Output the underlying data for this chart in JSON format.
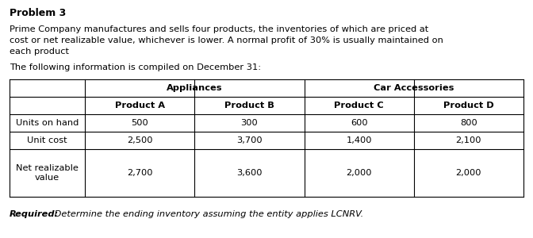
{
  "title": "Problem 3",
  "paragraph1": "Prime Company manufactures and sells four products, the inventories of which are priced at",
  "paragraph2": "cost or net realizable value, whichever is lower. A normal profit of 30% is usually maintained on",
  "paragraph3": "each product",
  "sub_heading": "The following information is compiled on December 31:",
  "required_label": "Required:",
  "required_rest": " Determine the ending inventory assuming the entity applies LCNRV.",
  "group_headers": [
    "Appliances",
    "Car Accessories"
  ],
  "col_headers": [
    "Product A",
    "Product B",
    "Product C",
    "Product D"
  ],
  "row_labels": [
    "Units on hand",
    "Unit cost",
    "Net realizable\nvalue"
  ],
  "data": [
    [
      "500",
      "300",
      "600",
      "800"
    ],
    [
      "2,500",
      "3,700",
      "1,400",
      "2,100"
    ],
    [
      "2,700",
      "3,600",
      "2,000",
      "2,000"
    ]
  ],
  "bg_color": "#ffffff",
  "text_color": "#000000",
  "title_fontsize": 9.0,
  "body_fontsize": 8.2,
  "table_fontsize": 8.2,
  "line_color": "#000000",
  "line_width": 0.8
}
